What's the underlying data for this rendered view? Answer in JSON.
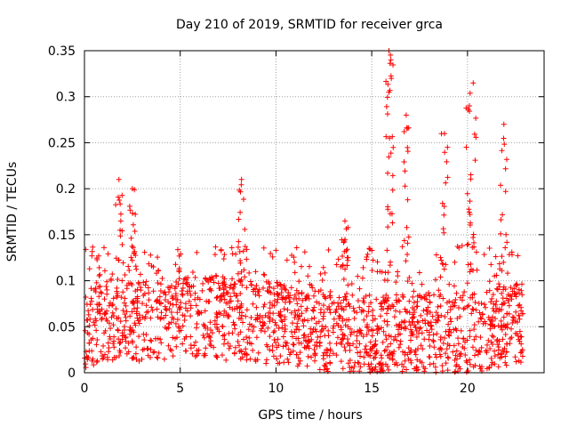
{
  "chart_data": {
    "type": "scatter",
    "title": "Day 210 of 2019, SRMTID for receiver grca",
    "xlabel": "GPS time / hours",
    "ylabel": "SRMTID / TECUs",
    "xlim": [
      0,
      24
    ],
    "ylim": [
      0,
      0.35
    ],
    "grid": true,
    "marker": "plus",
    "color": "#ff0000",
    "x_ticks": [
      0,
      5,
      10,
      15,
      20
    ],
    "x_tick_labels": [
      "0",
      "5",
      "10",
      "15",
      "20"
    ],
    "y_ticks": [
      0,
      0.05,
      0.1,
      0.15,
      0.2,
      0.25,
      0.3,
      0.35
    ],
    "y_tick_labels": [
      "0",
      "0.05",
      "0.1",
      "0.15",
      "0.2",
      "0.25",
      "0.3",
      "0.35"
    ],
    "series": [
      {
        "name": "SRMTID",
        "x_range_hours": [
          0,
          22.9
        ],
        "median_level": 0.05,
        "typical_max": 0.13,
        "notable_peaks": [
          {
            "x": 1.8,
            "y": 0.21
          },
          {
            "x": 2.5,
            "y": 0.2
          },
          {
            "x": 8.2,
            "y": 0.21
          },
          {
            "x": 13.6,
            "y": 0.165
          },
          {
            "x": 15.9,
            "y": 0.35
          },
          {
            "x": 16.0,
            "y": 0.34
          },
          {
            "x": 16.8,
            "y": 0.28
          },
          {
            "x": 18.8,
            "y": 0.26
          },
          {
            "x": 20.3,
            "y": 0.315
          },
          {
            "x": 20.1,
            "y": 0.29
          },
          {
            "x": 21.9,
            "y": 0.27
          }
        ]
      }
    ]
  }
}
